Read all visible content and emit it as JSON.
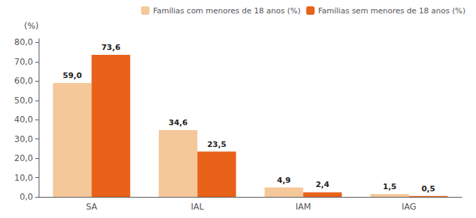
{
  "chart_data": {
    "type": "bar",
    "ylabel": "(%)",
    "categories": [
      "SA",
      "IAL",
      "IAM",
      "IAG"
    ],
    "series": [
      {
        "name": "Famílias com menores de 18 anos (%)",
        "color": "#F5C89A",
        "values": [
          59.0,
          34.6,
          4.9,
          1.5
        ],
        "value_labels": [
          "59,0",
          "34,6",
          "4,9",
          "1,5"
        ]
      },
      {
        "name": "Famílias sem menores de 18 anos (%)",
        "color": "#E8621A",
        "values": [
          73.6,
          23.5,
          2.4,
          0.5
        ],
        "value_labels": [
          "73,6",
          "23,5",
          "2,4",
          "0,5"
        ]
      }
    ],
    "ylim": [
      0,
      82
    ],
    "yticks": [
      {
        "value": 0.0,
        "label": "0,0"
      },
      {
        "value": 10.0,
        "label": "10,0"
      },
      {
        "value": 20.0,
        "label": "20,0"
      },
      {
        "value": 30.0,
        "label": "30,0"
      },
      {
        "value": 40.0,
        "label": "40,0"
      },
      {
        "value": 50.0,
        "label": "50,0"
      },
      {
        "value": 60.0,
        "label": "60,0"
      },
      {
        "value": 70.0,
        "label": "70,0"
      },
      {
        "value": 80.0,
        "label": "80,0"
      }
    ],
    "grid": false,
    "legend": "upper right",
    "data_labels": true
  }
}
